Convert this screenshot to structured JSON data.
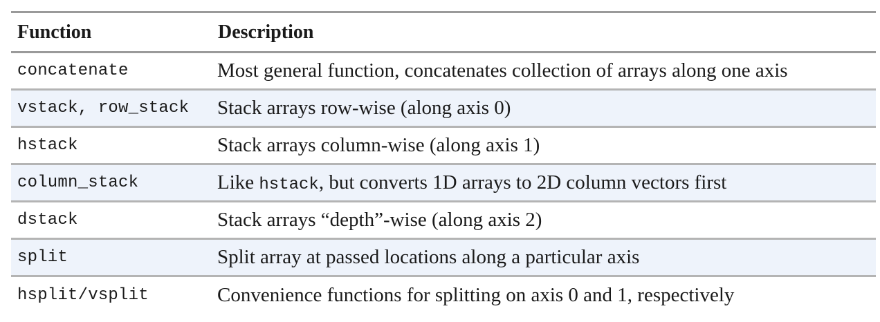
{
  "table": {
    "headers": {
      "function": "Function",
      "description": "Description"
    },
    "rows": [
      {
        "function": "concatenate",
        "desc_before": "Most general function, concatenates collection of arrays along one axis",
        "desc_code": "",
        "desc_after": ""
      },
      {
        "function": "vstack, row_stack",
        "desc_before": "Stack arrays row-wise (along axis 0)",
        "desc_code": "",
        "desc_after": ""
      },
      {
        "function": "hstack",
        "desc_before": "Stack arrays column-wise (along axis 1)",
        "desc_code": "",
        "desc_after": ""
      },
      {
        "function": "column_stack",
        "desc_before": "Like ",
        "desc_code": "hstack",
        "desc_after": ", but converts 1D arrays to 2D column vectors first"
      },
      {
        "function": "dstack",
        "desc_before": "Stack arrays “depth”-wise (along axis 2)",
        "desc_code": "",
        "desc_after": ""
      },
      {
        "function": "split",
        "desc_before": "Split array at passed locations along a particular axis",
        "desc_code": "",
        "desc_after": ""
      },
      {
        "function": "hsplit/vsplit",
        "desc_before": "Convenience functions for splitting on axis 0 and 1, respectively",
        "desc_code": "",
        "desc_after": ""
      }
    ],
    "colors": {
      "stripe": "#eef3fb",
      "rule": "#b4b4b4",
      "header_rule": "#9a9a9a",
      "text": "#1a1a1a"
    }
  }
}
